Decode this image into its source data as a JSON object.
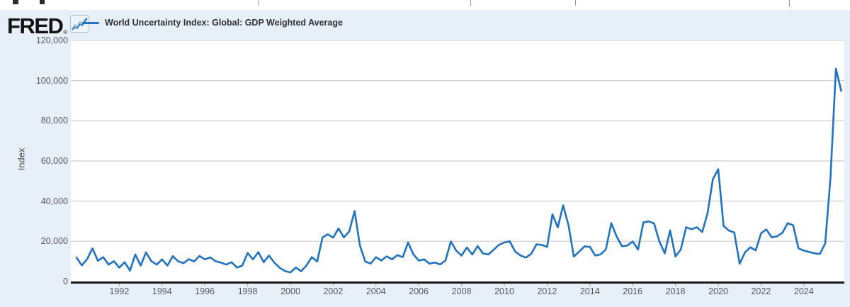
{
  "header": {
    "logo_text": "FRED",
    "registered_mark": "®",
    "logo_icon": "fred-sparkline-icon",
    "legend": {
      "series_label": "World Uncertainty Index: Global: GDP Weighted Average",
      "series_color": "#2272c2"
    }
  },
  "colors": {
    "page_background": "#e7f0f9",
    "plot_background": "#ffffff",
    "gridline": "#cccccc",
    "axis_line": "#1a1a1a",
    "tick_text": "#556",
    "series_line": "#2272c2"
  },
  "chart_data": {
    "type": "line",
    "title": "World Uncertainty Index: Global: GDP Weighted Average",
    "ylabel": "Index",
    "xlabel": "",
    "ylim": [
      0,
      120000
    ],
    "grid": "horizontal-only",
    "legend_position": "top-left",
    "frequency": "quarterly",
    "start_year": 1990,
    "x_tick_years": [
      1992,
      1994,
      1996,
      1998,
      2000,
      2002,
      2004,
      2006,
      2008,
      2010,
      2012,
      2014,
      2016,
      2018,
      2020,
      2022,
      2024
    ],
    "y_ticks": [
      {
        "value": 0,
        "label": "0"
      },
      {
        "value": 20000,
        "label": "20,000"
      },
      {
        "value": 40000,
        "label": "40,000"
      },
      {
        "value": 60000,
        "label": "60,000"
      },
      {
        "value": 80000,
        "label": "80,000"
      },
      {
        "value": 100000,
        "label": "100,000"
      },
      {
        "value": 120000,
        "label": "120,000"
      }
    ],
    "series": [
      {
        "name": "World Uncertainty Index: Global: GDP Weighted Average",
        "color": "#2272c2",
        "values": [
          11900,
          8000,
          11200,
          16500,
          10300,
          12100,
          8400,
          10100,
          6900,
          9600,
          5400,
          13400,
          7900,
          14500,
          10100,
          8400,
          11000,
          7900,
          12600,
          10100,
          9100,
          11100,
          10000,
          12700,
          11000,
          12000,
          10100,
          9400,
          8400,
          9600,
          6900,
          7900,
          14200,
          11000,
          14600,
          9600,
          12900,
          9400,
          6800,
          5200,
          4500,
          6900,
          5100,
          7900,
          12100,
          9900,
          21900,
          23500,
          21800,
          26400,
          21900,
          24900,
          35100,
          17900,
          9900,
          8900,
          12100,
          10400,
          12500,
          11000,
          13100,
          12100,
          19400,
          13500,
          10400,
          11000,
          8900,
          9400,
          8500,
          10400,
          19900,
          15400,
          12900,
          16900,
          13400,
          17600,
          14000,
          13400,
          15800,
          18200,
          19400,
          20000,
          15000,
          13000,
          11900,
          13700,
          18500,
          18200,
          17200,
          33400,
          26900,
          37900,
          28000,
          12400,
          14900,
          17500,
          17200,
          12900,
          13500,
          16000,
          29000,
          22400,
          17500,
          17900,
          19900,
          15900,
          29400,
          29900,
          28900,
          19900,
          14000,
          25400,
          12400,
          15900,
          27000,
          26000,
          27000,
          24600,
          34000,
          50900,
          55900,
          27700,
          25300,
          24400,
          8900,
          14500,
          17000,
          15500,
          24000,
          25900,
          21900,
          22500,
          24200,
          29000,
          28000,
          16500,
          15400,
          14700,
          14000,
          13700,
          18900,
          51900,
          105900,
          94900
        ]
      }
    ]
  }
}
